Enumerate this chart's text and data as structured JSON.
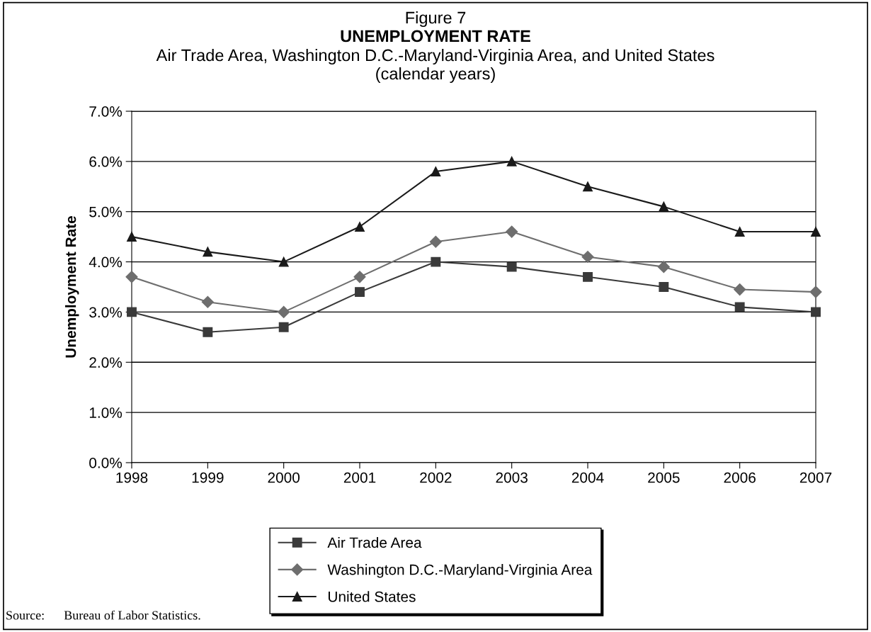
{
  "chart_data": {
    "type": "line",
    "title": "Figure 7",
    "subtitle": "UNEMPLOYMENT RATE",
    "annotations": [
      "Air Trade Area, Washington D.C.-Maryland-Virginia Area, and United States",
      "(calendar years)",
      "Source:      Bureau of Labor Statistics."
    ],
    "ylabel": "Unemployment Rate",
    "categories": [
      "1998",
      "1999",
      "2000",
      "2001",
      "2002",
      "2003",
      "2004",
      "2005",
      "2006",
      "2007"
    ],
    "series": [
      {
        "name": "Air Trade Area",
        "color": "#3a3a3a",
        "marker": "square",
        "values": [
          3.0,
          2.6,
          2.7,
          3.4,
          4.0,
          3.9,
          3.7,
          3.5,
          3.1,
          3.0
        ]
      },
      {
        "name": "Washington D.C.-Maryland-Virginia Area",
        "color": "#6e6e6e",
        "marker": "diamond",
        "values": [
          3.7,
          3.2,
          3.0,
          3.7,
          4.4,
          4.6,
          4.1,
          3.9,
          3.45,
          3.4
        ]
      },
      {
        "name": "United States",
        "color": "#1a1a1a",
        "marker": "triangle",
        "values": [
          4.5,
          4.2,
          4.0,
          4.7,
          5.8,
          6.0,
          5.5,
          5.1,
          4.6,
          4.6
        ]
      }
    ],
    "ylim": [
      0,
      7
    ],
    "yticks": [
      {
        "value": 0,
        "label": "0.0%"
      },
      {
        "value": 1,
        "label": "1.0%"
      },
      {
        "value": 2,
        "label": "2.0%"
      },
      {
        "value": 3,
        "label": "3.0%"
      },
      {
        "value": 4,
        "label": "4.0%"
      },
      {
        "value": 5,
        "label": "5.0%"
      },
      {
        "value": 6,
        "label": "6.0%"
      },
      {
        "value": 7,
        "label": "7.0%"
      }
    ],
    "grid": "y",
    "legend": "bottom",
    "line_style": "solid"
  }
}
